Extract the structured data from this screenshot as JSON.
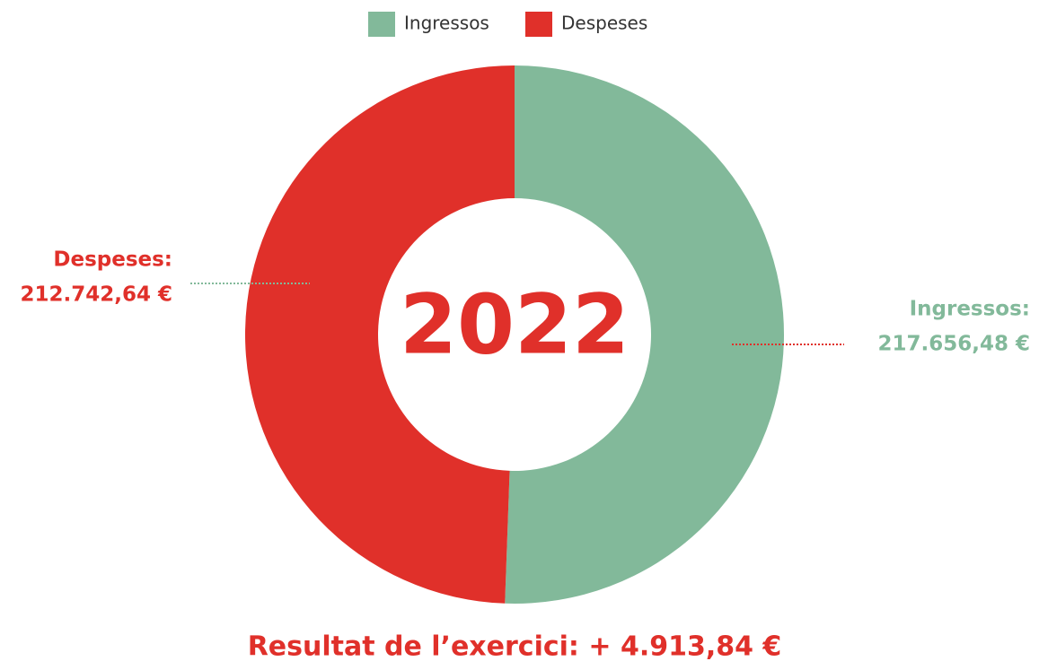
{
  "chart_data": {
    "type": "donut",
    "categories": [
      "Ingressos",
      "Despeses"
    ],
    "series": [
      {
        "name": "Ingressos",
        "color": "#82b99a"
      },
      {
        "name": "Despeses",
        "color": "#e0302a"
      }
    ],
    "values": [
      217656.48,
      212742.64
    ],
    "labels": [
      "Ingressos:",
      "Despeses:"
    ],
    "value_labels": [
      "217.656,48 €",
      "212.742,64 €"
    ],
    "center_label": "2022",
    "annotation": "Resultat de l’exercici: + 4.913,84 €",
    "legend": "top"
  }
}
